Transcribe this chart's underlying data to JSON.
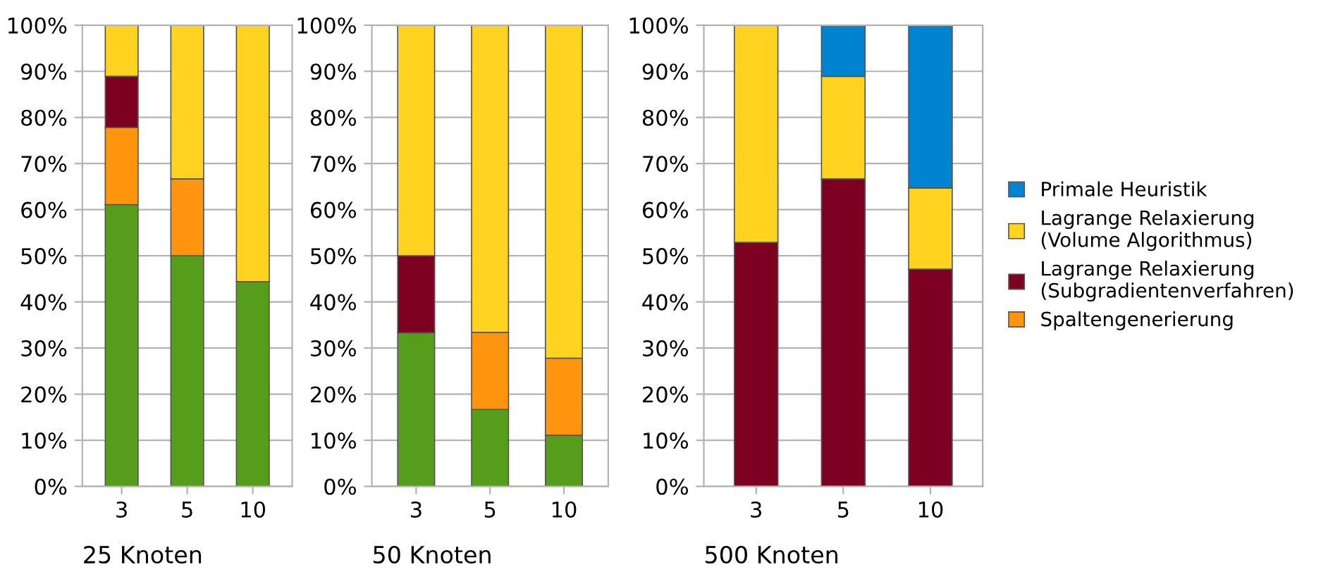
{
  "chart_data": [
    {
      "type": "bar",
      "stacked": true,
      "xlabel": "25 Knoten",
      "categories": [
        "3",
        "5",
        "10"
      ],
      "ylim": [
        0,
        100
      ],
      "yticks": [
        {
          "value": 0,
          "label": "0%"
        },
        {
          "value": 10,
          "label": "10%"
        },
        {
          "value": 20,
          "label": "20%"
        },
        {
          "value": 30,
          "label": "30%"
        },
        {
          "value": 40,
          "label": "40%"
        },
        {
          "value": 50,
          "label": "50%"
        },
        {
          "value": 60,
          "label": "60%"
        },
        {
          "value": 70,
          "label": "70%"
        },
        {
          "value": 80,
          "label": "80%"
        },
        {
          "value": 90,
          "label": "90%"
        },
        {
          "value": 100,
          "label": "100%"
        }
      ],
      "grid": "y",
      "series": [
        {
          "color": "#579d1c",
          "values": [
            61.1,
            50,
            44.4
          ]
        },
        {
          "color": "#ff950e",
          "values": [
            16.7,
            16.7,
            null
          ]
        },
        {
          "color": "#7e0021",
          "values": [
            11.1,
            null,
            null
          ]
        },
        {
          "color": "#ffd320",
          "values": [
            11.1,
            33.3,
            55.6
          ]
        }
      ]
    },
    {
      "type": "bar",
      "stacked": true,
      "xlabel": "50 Knoten",
      "categories": [
        "3",
        "5",
        "10"
      ],
      "ylim": [
        0,
        100
      ],
      "yticks": [
        {
          "value": 0,
          "label": "0%"
        },
        {
          "value": 10,
          "label": "10%"
        },
        {
          "value": 20,
          "label": "20%"
        },
        {
          "value": 30,
          "label": "30%"
        },
        {
          "value": 40,
          "label": "40%"
        },
        {
          "value": 50,
          "label": "50%"
        },
        {
          "value": 60,
          "label": "60%"
        },
        {
          "value": 70,
          "label": "70%"
        },
        {
          "value": 80,
          "label": "80%"
        },
        {
          "value": 90,
          "label": "90%"
        },
        {
          "value": 100,
          "label": "100%"
        }
      ],
      "grid": "y",
      "series": [
        {
          "color": "#579d1c",
          "values": [
            33.3,
            16.7,
            11.1
          ]
        },
        {
          "color": "#ff950e",
          "values": [
            null,
            16.7,
            16.7
          ]
        },
        {
          "color": "#7e0021",
          "values": [
            16.7,
            null,
            null
          ]
        },
        {
          "color": "#ffd320",
          "values": [
            50,
            66.6,
            72.2
          ]
        }
      ]
    },
    {
      "type": "bar",
      "stacked": true,
      "xlabel": "500 Knoten",
      "categories": [
        "3",
        "5",
        "10"
      ],
      "ylim": [
        0,
        100
      ],
      "yticks": [
        {
          "value": 0,
          "label": "0%"
        },
        {
          "value": 10,
          "label": "10%"
        },
        {
          "value": 20,
          "label": "20%"
        },
        {
          "value": 30,
          "label": "30%"
        },
        {
          "value": 40,
          "label": "40%"
        },
        {
          "value": 50,
          "label": "50%"
        },
        {
          "value": 60,
          "label": "60%"
        },
        {
          "value": 70,
          "label": "70%"
        },
        {
          "value": 80,
          "label": "80%"
        },
        {
          "value": 90,
          "label": "90%"
        },
        {
          "value": 100,
          "label": "100%"
        }
      ],
      "grid": "y",
      "legend": "right",
      "series": [
        {
          "name": "Spaltengenerierung",
          "color": "#ff950e",
          "values": [
            null,
            null,
            null
          ]
        },
        {
          "name": "Lagrange Relaxierung\n(Subgradientenverfahren)",
          "color": "#7e0021",
          "values": [
            52.9,
            66.7,
            47.1
          ]
        },
        {
          "name": "Lagrange Relaxierung\n(Volume Algorithmus)",
          "color": "#ffd320",
          "values": [
            47.1,
            22.2,
            17.6
          ]
        },
        {
          "name": "Primale Heuristik",
          "color": "#0084d1",
          "values": [
            null,
            11.1,
            35.3
          ]
        }
      ]
    }
  ]
}
